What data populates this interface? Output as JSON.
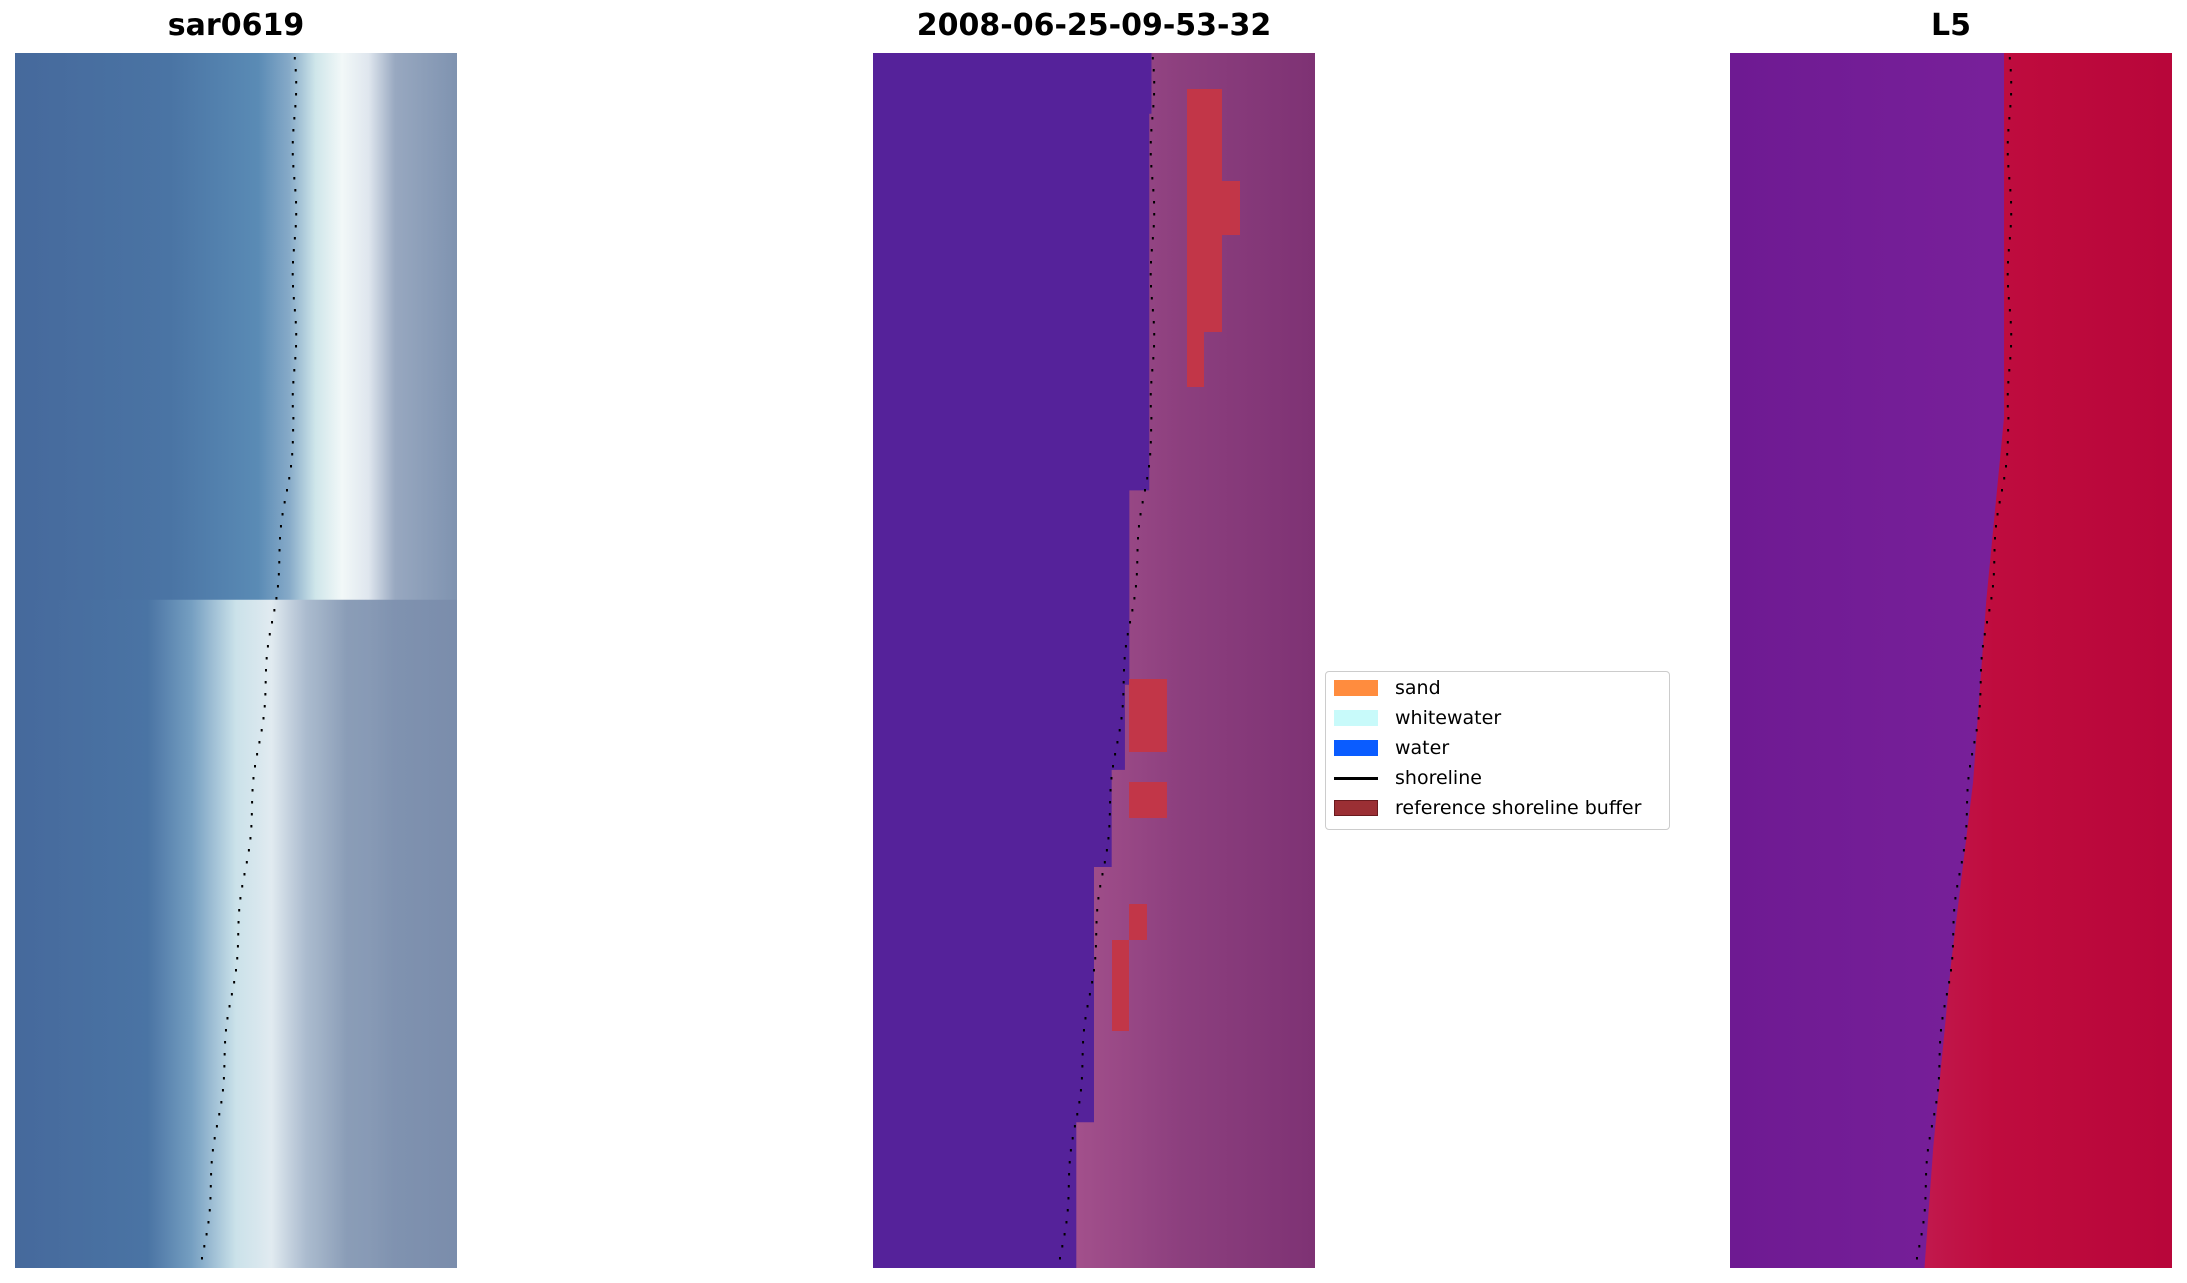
{
  "chart_data": {
    "type": "image-panels",
    "panels": [
      {
        "title": "sar0619",
        "shoreline_x_fraction": {
          "top": 0.63,
          "bottom": 0.42
        }
      },
      {
        "title": "2008-06-25-09-53-32",
        "shoreline_x_fraction": {
          "top": 0.63,
          "bottom": 0.42
        }
      },
      {
        "title": "L5",
        "shoreline_x_fraction": {
          "top": 0.63,
          "bottom": 0.42
        }
      }
    ],
    "legend": {
      "placement": "center",
      "items": [
        {
          "label": "sand",
          "color": "#ff8c3e",
          "kind": "patch"
        },
        {
          "label": "whitewater",
          "color": "#c8fafa",
          "kind": "patch"
        },
        {
          "label": "water",
          "color": "#0a5cff",
          "kind": "patch"
        },
        {
          "label": "shoreline",
          "color": "#000000",
          "kind": "line"
        },
        {
          "label": "reference shoreline buffer",
          "color": "#9b2f34",
          "kind": "patch"
        }
      ]
    }
  }
}
